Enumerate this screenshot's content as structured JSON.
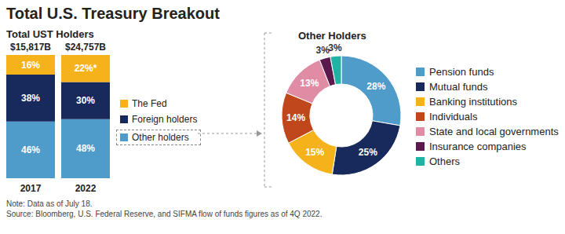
{
  "title": "Total U.S. Treasury Breakout",
  "note": "Note: Data as of July 18.",
  "source": "Source: Bloomberg, U.S. Federal Reserve, and SIFMA flow of funds figures as of 4Q 2022.",
  "chart_data": [
    {
      "type": "bar",
      "title": "Total UST Holders",
      "stacked": true,
      "data_labels": true,
      "tick_labels": "x",
      "legend": "right",
      "categories": [
        "2017",
        "2022"
      ],
      "ylim": [
        0,
        100
      ],
      "totals": [
        {
          "value": 15817,
          "label": "$15,817B"
        },
        {
          "value": 24757,
          "label": "$24,757B"
        }
      ],
      "series": [
        {
          "name": "Other holders",
          "color": "#4f9ccb",
          "values": [
            46,
            48
          ],
          "value_labels": [
            "46%",
            "48%"
          ]
        },
        {
          "name": "Foreign holders",
          "color": "#182a5c",
          "values": [
            38,
            30
          ],
          "value_labels": [
            "38%",
            "30%"
          ]
        },
        {
          "name": "The Fed",
          "color": "#f6b21b",
          "values": [
            16,
            22
          ],
          "value_labels": [
            "16%",
            "22%*"
          ]
        }
      ]
    },
    {
      "type": "pie",
      "title": "Other Holders",
      "data_labels": true,
      "legend": "right",
      "categories": [
        "Pension funds",
        "Mutual funds",
        "Banking institutions",
        "Individuals",
        "State and local governments",
        "Insurance companies",
        "Others"
      ],
      "values": [
        28,
        25,
        15,
        14,
        13,
        3,
        3
      ],
      "value_labels": [
        "28%",
        "25%",
        "15%",
        "14%",
        "13%",
        "3%",
        "3%"
      ],
      "colors": [
        "#4f9ccb",
        "#182a5c",
        "#f6b21b",
        "#c0461c",
        "#e08ca4",
        "#5a1a4e",
        "#1fb3a6"
      ]
    }
  ]
}
